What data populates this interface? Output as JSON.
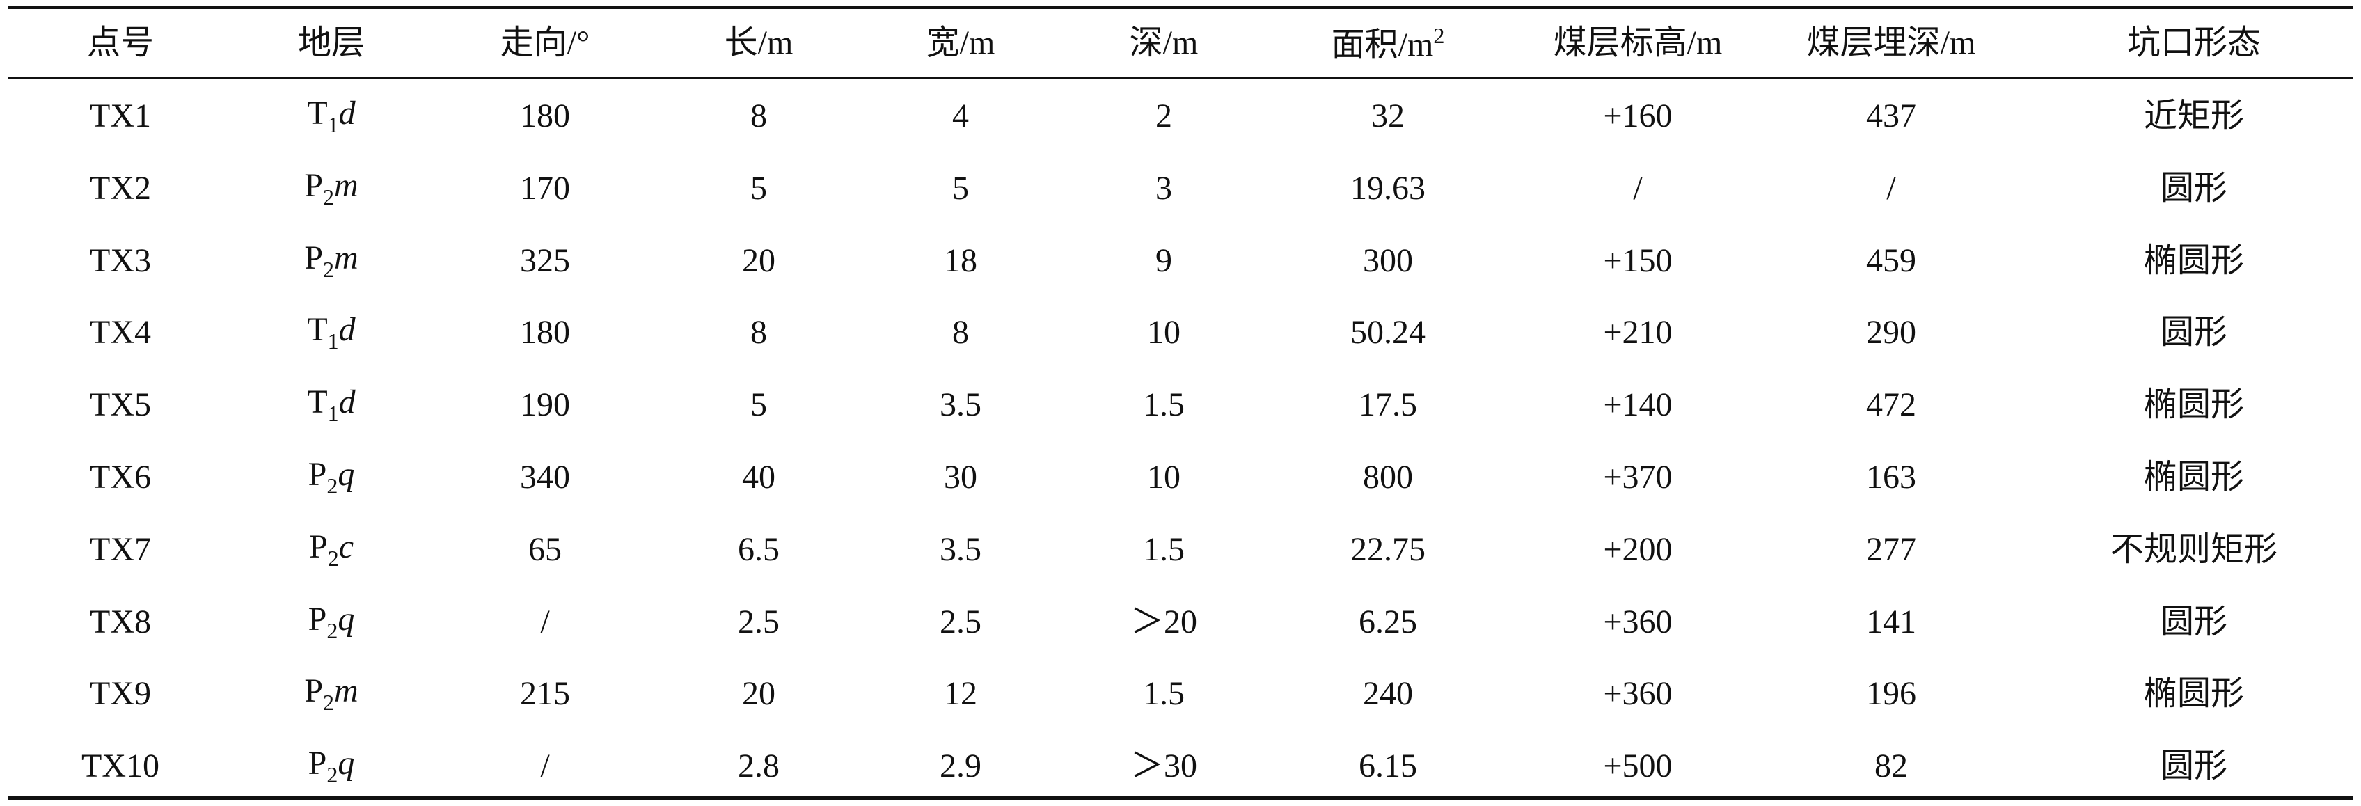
{
  "table": {
    "header": [
      "点号",
      "地层",
      "走向/°",
      "长/m",
      "宽/m",
      "深/m",
      [
        "面积/m",
        "2"
      ],
      "煤层标高/m",
      "煤层埋深/m",
      "坑口形态"
    ],
    "rows": [
      [
        "TX1",
        [
          "T",
          "1",
          "d"
        ],
        "180",
        "8",
        "4",
        "2",
        "32",
        "+160",
        "437",
        "近矩形"
      ],
      [
        "TX2",
        [
          "P",
          "2",
          "m"
        ],
        "170",
        "5",
        "5",
        "3",
        "19.63",
        "/",
        "/",
        "圆形"
      ],
      [
        "TX3",
        [
          "P",
          "2",
          "m"
        ],
        "325",
        "20",
        "18",
        "9",
        "300",
        "+150",
        "459",
        "椭圆形"
      ],
      [
        "TX4",
        [
          "T",
          "1",
          "d"
        ],
        "180",
        "8",
        "8",
        "10",
        "50.24",
        "+210",
        "290",
        "圆形"
      ],
      [
        "TX5",
        [
          "T",
          "1",
          "d"
        ],
        "190",
        "5",
        "3.5",
        "1.5",
        "17.5",
        "+140",
        "472",
        "椭圆形"
      ],
      [
        "TX6",
        [
          "P",
          "2",
          "q"
        ],
        "340",
        "40",
        "30",
        "10",
        "800",
        "+370",
        "163",
        "椭圆形"
      ],
      [
        "TX7",
        [
          "P",
          "2",
          "c"
        ],
        "65",
        "6.5",
        "3.5",
        "1.5",
        "22.75",
        "+200",
        "277",
        "不规则矩形"
      ],
      [
        "TX8",
        [
          "P",
          "2",
          "q"
        ],
        "/",
        "2.5",
        "2.5",
        "＞20",
        "6.25",
        "+360",
        "141",
        "圆形"
      ],
      [
        "TX9",
        [
          "P",
          "2",
          "m"
        ],
        "215",
        "20",
        "12",
        "1.5",
        "240",
        "+360",
        "196",
        "椭圆形"
      ],
      [
        "TX10",
        [
          "P",
          "2",
          "q"
        ],
        "/",
        "2.8",
        "2.9",
        "＞30",
        "6.15",
        "+500",
        "82",
        "圆形"
      ]
    ]
  }
}
